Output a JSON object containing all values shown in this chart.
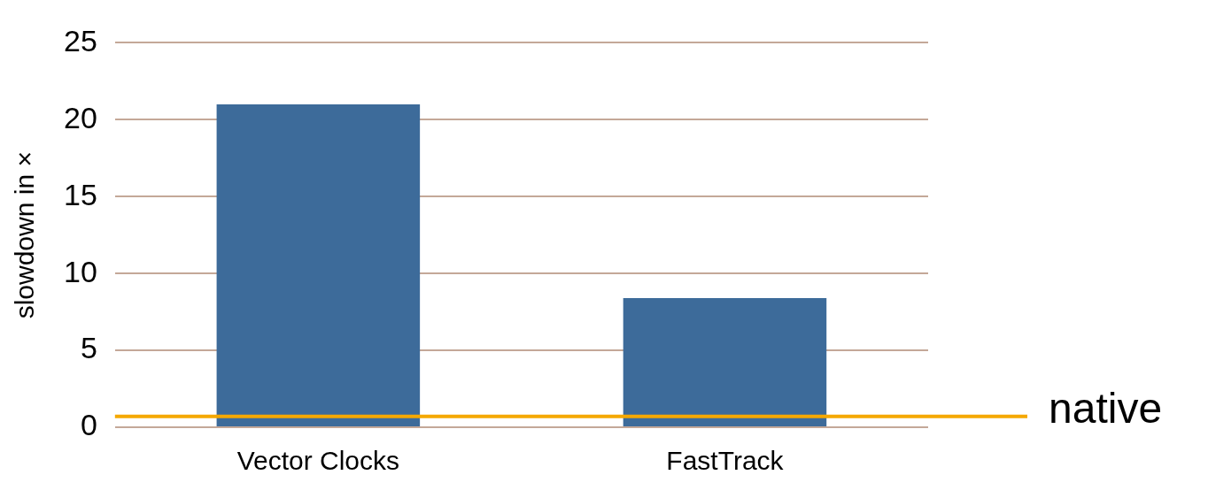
{
  "chart_data": {
    "type": "bar",
    "ylabel": "slowdown in ×",
    "categories": [
      "Vector Clocks",
      "FastTrack"
    ],
    "values": [
      21,
      8.4
    ],
    "color": "#3d6b9a",
    "ylim": [
      0,
      25
    ],
    "yticks": [
      0,
      5,
      10,
      15,
      20,
      25
    ],
    "grid": "y",
    "ref_lines": [
      {
        "axis": "y",
        "value": 0.7,
        "label": "native",
        "color": "#f5a800"
      }
    ]
  }
}
